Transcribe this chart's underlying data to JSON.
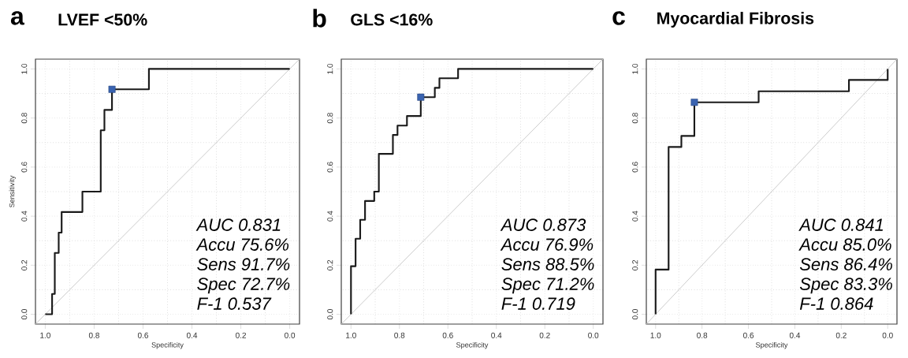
{
  "chart_data": [
    {
      "type": "line",
      "title": "LVEF <50%",
      "xlabel": "Specificity",
      "ylabel": "Sensitivity",
      "xlim": [
        1.04,
        -0.04
      ],
      "ylim": [
        -0.04,
        1.04
      ],
      "xticks": [
        {
          "value": 1,
          "label": "1.0"
        },
        {
          "value": 0.8,
          "label": "0.8"
        },
        {
          "value": 0.6,
          "label": "0.6"
        },
        {
          "value": 0.4,
          "label": "0.4"
        },
        {
          "value": 0.2,
          "label": "0.2"
        },
        {
          "value": 0,
          "label": "0.0"
        }
      ],
      "yticks": [
        {
          "value": 0,
          "label": "0.0"
        },
        {
          "value": 0.2,
          "label": "0.2"
        },
        {
          "value": 0.4,
          "label": "0.4"
        },
        {
          "value": 0.6,
          "label": "0.6"
        },
        {
          "value": 0.8,
          "label": "0.8"
        },
        {
          "value": 1,
          "label": "1.0"
        }
      ],
      "grid": true,
      "series": [
        {
          "type": "line",
          "color": "#c8c8c8",
          "x": [
            1.04,
            -0.04
          ],
          "values": [
            -0.04,
            1.04
          ]
        },
        {
          "type": "line",
          "color": "#1a1a1a",
          "x": [
            1,
            0.972,
            0.972,
            0.961,
            0.961,
            0.945,
            0.945,
            0.933,
            0.933,
            0.848,
            0.848,
            0.773,
            0.773,
            0.758,
            0.758,
            0.727,
            0.727,
            0.576,
            0.576,
            0
          ],
          "values": [
            0,
            0,
            0.083,
            0.083,
            0.25,
            0.25,
            0.333,
            0.333,
            0.417,
            0.417,
            0.5,
            0.5,
            0.75,
            0.75,
            0.833,
            0.833,
            0.917,
            0.917,
            1,
            1
          ]
        },
        {
          "type": "scatter",
          "color": "#3a63b0",
          "marker": "square",
          "x": [
            0.727
          ],
          "values": [
            0.917
          ]
        }
      ],
      "annotations": [
        "a",
        "AUC  0.831",
        "Accu 75.6%",
        "Sens 91.7%",
        "Spec 72.7%",
        "F-1    0.537"
      ]
    },
    {
      "type": "line",
      "title": "GLS <16%",
      "xlabel": "Specificity",
      "xlim": [
        1.04,
        -0.04
      ],
      "ylim": [
        -0.04,
        1.04
      ],
      "xticks": [
        {
          "value": 1,
          "label": "1.0"
        },
        {
          "value": 0.8,
          "label": "0.8"
        },
        {
          "value": 0.6,
          "label": "0.6"
        },
        {
          "value": 0.4,
          "label": "0.4"
        },
        {
          "value": 0.2,
          "label": "0.2"
        },
        {
          "value": 0,
          "label": "0.0"
        }
      ],
      "yticks": [
        {
          "value": 0,
          "label": "0.0"
        },
        {
          "value": 0.2,
          "label": "0.2"
        },
        {
          "value": 0.4,
          "label": "0.4"
        },
        {
          "value": 0.6,
          "label": "0.6"
        },
        {
          "value": 0.8,
          "label": "0.8"
        },
        {
          "value": 1,
          "label": "1.0"
        }
      ],
      "grid": true,
      "series": [
        {
          "type": "line",
          "color": "#c8c8c8",
          "x": [
            1.04,
            -0.04
          ],
          "values": [
            -0.04,
            1.04
          ]
        },
        {
          "type": "line",
          "color": "#1a1a1a",
          "x": [
            1,
            1,
            0.981,
            0.981,
            0.962,
            0.962,
            0.942,
            0.942,
            0.904,
            0.904,
            0.885,
            0.885,
            0.827,
            0.827,
            0.808,
            0.808,
            0.769,
            0.769,
            0.712,
            0.712,
            0.654,
            0.654,
            0.635,
            0.635,
            0.558,
            0.558,
            0
          ],
          "values": [
            0,
            0.196,
            0.196,
            0.308,
            0.308,
            0.385,
            0.385,
            0.462,
            0.462,
            0.5,
            0.5,
            0.654,
            0.654,
            0.731,
            0.731,
            0.769,
            0.769,
            0.808,
            0.808,
            0.885,
            0.885,
            0.923,
            0.923,
            0.962,
            0.962,
            1,
            1
          ]
        },
        {
          "type": "scatter",
          "color": "#3a63b0",
          "marker": "square",
          "x": [
            0.712
          ],
          "values": [
            0.885
          ]
        }
      ],
      "annotations": [
        "b",
        "AUC  0.873",
        "Accu 76.9%",
        "Sens 88.5%",
        "Spec 71.2%",
        "F-1    0.719"
      ]
    },
    {
      "type": "line",
      "title": "Myocardial Fibrosis",
      "xlabel": "Specificity",
      "xlim": [
        1.04,
        -0.04
      ],
      "ylim": [
        -0.04,
        1.04
      ],
      "xticks": [
        {
          "value": 1,
          "label": "1.0"
        },
        {
          "value": 0.8,
          "label": "0.8"
        },
        {
          "value": 0.6,
          "label": "0.6"
        },
        {
          "value": 0.4,
          "label": "0.4"
        },
        {
          "value": 0.2,
          "label": "0.2"
        },
        {
          "value": 0,
          "label": "0.0"
        }
      ],
      "yticks": [
        {
          "value": 0,
          "label": "0.0"
        },
        {
          "value": 0.2,
          "label": "0.2"
        },
        {
          "value": 0.4,
          "label": "0.4"
        },
        {
          "value": 0.6,
          "label": "0.6"
        },
        {
          "value": 0.8,
          "label": "0.8"
        },
        {
          "value": 1,
          "label": "1.0"
        }
      ],
      "grid": true,
      "series": [
        {
          "type": "line",
          "color": "#c8c8c8",
          "x": [
            1.04,
            -0.04
          ],
          "values": [
            -0.04,
            1.04
          ]
        },
        {
          "type": "line",
          "color": "#1a1a1a",
          "x": [
            1,
            1,
            0.944,
            0.944,
            0.889,
            0.889,
            0.833,
            0.833,
            0.556,
            0.556,
            0.167,
            0.167,
            0,
            0
          ],
          "values": [
            0,
            0.182,
            0.182,
            0.682,
            0.682,
            0.727,
            0.727,
            0.864,
            0.864,
            0.909,
            0.909,
            0.955,
            0.955,
            1
          ]
        },
        {
          "type": "scatter",
          "color": "#3a63b0",
          "marker": "square",
          "x": [
            0.833
          ],
          "values": [
            0.864
          ]
        }
      ],
      "annotations": [
        "c",
        "AUC  0.841",
        "Accu 85.0%",
        "Sens 86.4%",
        "Spec 83.3%",
        "F-1    0.864"
      ]
    }
  ]
}
